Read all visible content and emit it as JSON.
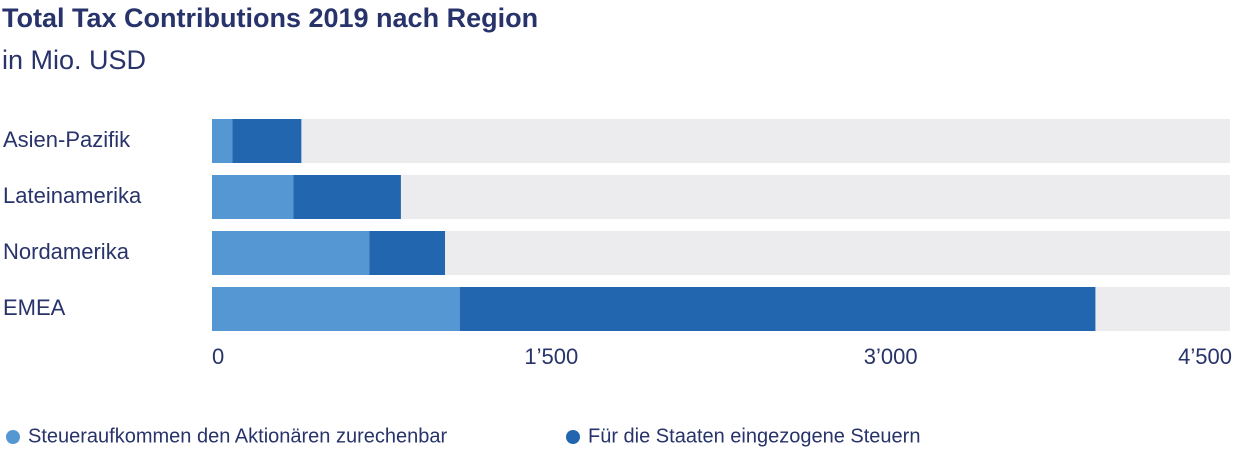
{
  "chart_data": {
    "type": "stacked-bar-horizontal",
    "title": "Total Tax Contributions 2019 nach Region",
    "subtitle": "in Mio. USD",
    "categories": [
      "Asien-Pazifik",
      "Lateinamerika",
      "Nordamerika",
      "EMEA"
    ],
    "series": [
      {
        "name": "Steueraufkommen den Aktionären zurechenbar",
        "color": "#5597d3",
        "values": [
          90,
          360,
          695,
          1095
        ]
      },
      {
        "name": "Für die Staaten eingezogene Steuern",
        "color": "#2166ae",
        "values": [
          305,
          475,
          335,
          2810
        ]
      }
    ],
    "xlim": [
      0,
      4500
    ],
    "xticks": [
      0,
      {
        "value": 1500,
        "label": "1’500"
      },
      {
        "value": 3000,
        "label": "3’000"
      },
      {
        "value": 4500,
        "label": "4’500"
      }
    ],
    "grid": false
  }
}
